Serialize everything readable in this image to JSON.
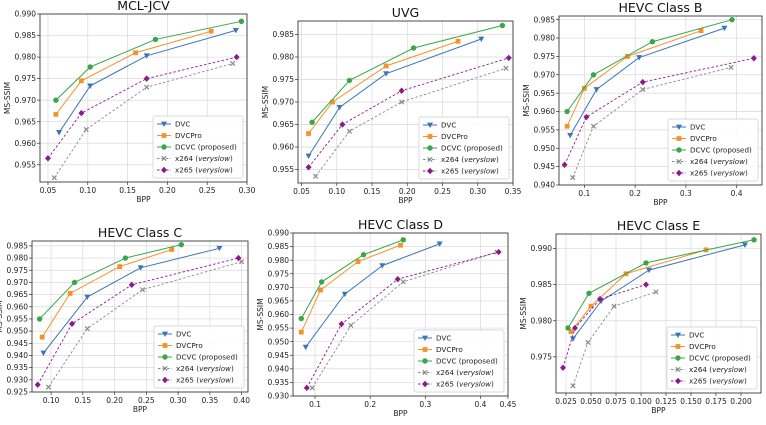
{
  "figure": {
    "ylabel": "MS-SSIM",
    "xlabel": "BPP"
  },
  "legend_labels": {
    "dvc": "DVC",
    "dvcpro": "DVCPro",
    "dcvc_name": "DCVC",
    "dcvc_note": "(proposed)",
    "x264_name": "x264",
    "x265_name": "x265",
    "preset": "veryslow"
  },
  "series_styles": [
    {
      "key": "dvc",
      "name": "DVC",
      "color": "#3a76b7",
      "marker": "tri-down",
      "dashed": false
    },
    {
      "key": "dvcpro",
      "name": "DVCPro",
      "color": "#f5922b",
      "marker": "square",
      "dashed": false
    },
    {
      "key": "dcvc",
      "name": "DCVC (proposed)",
      "color": "#3aa648",
      "marker": "circle",
      "dashed": false
    },
    {
      "key": "x264",
      "name": "x264 (veryslow)",
      "color": "#8a8a8a",
      "marker": "x",
      "dashed": true
    },
    {
      "key": "x265",
      "name": "x265 (veryslow)",
      "color": "#8c1a8c",
      "marker": "diamond",
      "dashed": true
    }
  ],
  "chart_data": [
    {
      "type": "line",
      "title": "MCL-JCV",
      "xlabel": "BPP",
      "ylabel": "MS-SSIM",
      "xlim": [
        0.04,
        0.3
      ],
      "ylim": [
        0.951,
        0.99
      ],
      "xticks": [
        "0.05",
        "0.10",
        "0.15",
        "0.20",
        "0.25",
        "0.30"
      ],
      "yticks": [
        "0.955",
        "0.960",
        "0.965",
        "0.970",
        "0.975",
        "0.980",
        "0.985",
        "0.990"
      ],
      "legend": "lower-right",
      "series": [
        {
          "name": "DVC",
          "x": [
            0.064,
            0.103,
            0.174,
            0.286
          ],
          "y": [
            0.9625,
            0.9733,
            0.9803,
            0.9862
          ]
        },
        {
          "name": "DVCPro",
          "x": [
            0.06,
            0.092,
            0.16,
            0.255
          ],
          "y": [
            0.9667,
            0.9745,
            0.981,
            0.986
          ]
        },
        {
          "name": "DCVC (proposed)",
          "x": [
            0.06,
            0.103,
            0.185,
            0.293
          ],
          "y": [
            0.97,
            0.9777,
            0.9841,
            0.9883
          ]
        },
        {
          "name": "x264 (veryslow)",
          "x": [
            0.058,
            0.098,
            0.174,
            0.282
          ],
          "y": [
            0.952,
            0.9632,
            0.973,
            0.9785
          ]
        },
        {
          "name": "x265 (veryslow)",
          "x": [
            0.05,
            0.092,
            0.174,
            0.287
          ],
          "y": [
            0.9565,
            0.967,
            0.975,
            0.98
          ]
        }
      ]
    },
    {
      "type": "line",
      "title": "UVG",
      "xlabel": "BPP",
      "ylabel": "MS-SSIM",
      "xlim": [
        0.045,
        0.35
      ],
      "ylim": [
        0.952,
        0.988
      ],
      "xticks": [
        "0.05",
        "0.10",
        "0.15",
        "0.20",
        "0.25",
        "0.30",
        "0.35"
      ],
      "yticks": [
        "0.955",
        "0.960",
        "0.965",
        "0.970",
        "0.975",
        "0.980",
        "0.985"
      ],
      "legend": "lower-right",
      "series": [
        {
          "name": "DVC",
          "x": [
            0.06,
            0.104,
            0.17,
            0.305
          ],
          "y": [
            0.958,
            0.9688,
            0.9763,
            0.984
          ]
        },
        {
          "name": "DVCPro",
          "x": [
            0.06,
            0.094,
            0.17,
            0.272
          ],
          "y": [
            0.963,
            0.97,
            0.978,
            0.9835
          ]
        },
        {
          "name": "DCVC (proposed)",
          "x": [
            0.065,
            0.118,
            0.209,
            0.335
          ],
          "y": [
            0.9655,
            0.9748,
            0.982,
            0.987
          ]
        },
        {
          "name": "x264 (veryslow)",
          "x": [
            0.07,
            0.118,
            0.192,
            0.34
          ],
          "y": [
            0.9535,
            0.9635,
            0.97,
            0.9775
          ]
        },
        {
          "name": "x265 (veryslow)",
          "x": [
            0.06,
            0.108,
            0.192,
            0.344
          ],
          "y": [
            0.9555,
            0.965,
            0.9725,
            0.9798
          ]
        }
      ]
    },
    {
      "type": "line",
      "title": "HEVC Class B",
      "xlabel": "BPP",
      "ylabel": "MS-SSIM",
      "xlim": [
        0.05,
        0.45
      ],
      "ylim": [
        0.94,
        0.986
      ],
      "xticks": [
        "0.1",
        "0.2",
        "0.3",
        "0.4"
      ],
      "yticks": [
        "0.940",
        "0.945",
        "0.950",
        "0.955",
        "0.960",
        "0.965",
        "0.970",
        "0.975",
        "0.980",
        "0.985"
      ],
      "legend": "lower-right",
      "series": [
        {
          "name": "DVC",
          "x": [
            0.072,
            0.124,
            0.208,
            0.376
          ],
          "y": [
            0.9535,
            0.966,
            0.9747,
            0.9827
          ]
        },
        {
          "name": "DVCPro",
          "x": [
            0.066,
            0.1,
            0.185,
            0.33
          ],
          "y": [
            0.956,
            0.9663,
            0.975,
            0.982
          ]
        },
        {
          "name": "DCVC (proposed)",
          "x": [
            0.066,
            0.118,
            0.234,
            0.391
          ],
          "y": [
            0.96,
            0.97,
            0.979,
            0.985
          ]
        },
        {
          "name": "x264 (veryslow)",
          "x": [
            0.077,
            0.118,
            0.215,
            0.389
          ],
          "y": [
            0.942,
            0.956,
            0.966,
            0.972
          ]
        },
        {
          "name": "x265 (veryslow)",
          "x": [
            0.061,
            0.104,
            0.215,
            0.434
          ],
          "y": [
            0.9455,
            0.9585,
            0.968,
            0.9745
          ]
        }
      ]
    },
    {
      "type": "line",
      "title": "HEVC Class C",
      "xlabel": "BPP",
      "ylabel": "MS-SSIM",
      "xlim": [
        0.07,
        0.41
      ],
      "ylim": [
        0.925,
        0.987
      ],
      "xticks": [
        "0.10",
        "0.15",
        "0.20",
        "0.25",
        "0.30",
        "0.35",
        "0.40"
      ],
      "yticks": [
        "0.925",
        "0.930",
        "0.935",
        "0.940",
        "0.945",
        "0.950",
        "0.955",
        "0.960",
        "0.965",
        "0.970",
        "0.975",
        "0.980",
        "0.985"
      ],
      "legend": "lower-right",
      "series": [
        {
          "name": "DVC",
          "x": [
            0.088,
            0.157,
            0.241,
            0.365
          ],
          "y": [
            0.941,
            0.964,
            0.976,
            0.984
          ]
        },
        {
          "name": "DVCPro",
          "x": [
            0.086,
            0.13,
            0.208,
            0.29
          ],
          "y": [
            0.9475,
            0.9655,
            0.9765,
            0.9835
          ]
        },
        {
          "name": "DCVC (proposed)",
          "x": [
            0.082,
            0.137,
            0.217,
            0.305
          ],
          "y": [
            0.955,
            0.97,
            0.98,
            0.9855
          ]
        },
        {
          "name": "x264 (veryslow)",
          "x": [
            0.096,
            0.157,
            0.244,
            0.4
          ],
          "y": [
            0.927,
            0.951,
            0.967,
            0.9785
          ]
        },
        {
          "name": "x265 (veryslow)",
          "x": [
            0.079,
            0.133,
            0.227,
            0.395
          ],
          "y": [
            0.928,
            0.953,
            0.969,
            0.98
          ]
        }
      ]
    },
    {
      "type": "line",
      "title": "HEVC Class D",
      "xlabel": "BPP",
      "ylabel": "MS-SSIM",
      "xlim": [
        0.06,
        0.45
      ],
      "ylim": [
        0.93,
        0.99
      ],
      "xticks": [
        "0.1",
        "0.2",
        "0.3",
        "0.4",
        "0.45"
      ],
      "yticks": [
        "0.930",
        "0.935",
        "0.940",
        "0.945",
        "0.950",
        "0.955",
        "0.960",
        "0.965",
        "0.970",
        "0.975",
        "0.980",
        "0.985",
        "0.990"
      ],
      "legend": "lower-right",
      "series": [
        {
          "name": "DVC",
          "x": [
            0.083,
            0.154,
            0.222,
            0.326
          ],
          "y": [
            0.948,
            0.9675,
            0.978,
            0.986
          ]
        },
        {
          "name": "DVCPro",
          "x": [
            0.075,
            0.11,
            0.178,
            0.255
          ],
          "y": [
            0.9535,
            0.969,
            0.9795,
            0.9855
          ]
        },
        {
          "name": "DCVC (proposed)",
          "x": [
            0.075,
            0.112,
            0.188,
            0.26
          ],
          "y": [
            0.9585,
            0.972,
            0.982,
            0.9875
          ]
        },
        {
          "name": "x264 (veryslow)",
          "x": [
            0.095,
            0.165,
            0.26,
            0.43
          ],
          "y": [
            0.933,
            0.956,
            0.972,
            0.983
          ]
        },
        {
          "name": "x265 (veryslow)",
          "x": [
            0.085,
            0.148,
            0.25,
            0.433
          ],
          "y": [
            0.933,
            0.9565,
            0.973,
            0.983
          ]
        }
      ]
    },
    {
      "type": "line",
      "title": "HEVC Class E",
      "xlabel": "BPP",
      "ylabel": "MS-SSIM",
      "xlim": [
        0.015,
        0.22
      ],
      "ylim": [
        0.97,
        0.992
      ],
      "xticks": [
        "0.025",
        "0.050",
        "0.075",
        "0.100",
        "0.125",
        "0.150",
        "0.175",
        "0.200"
      ],
      "yticks": [
        "0.975",
        "0.980",
        "0.985",
        "0.990"
      ],
      "legend": "lower-right",
      "series": [
        {
          "name": "DVC",
          "x": [
            0.032,
            0.06,
            0.108,
            0.204
          ],
          "y": [
            0.9775,
            0.9827,
            0.987,
            0.9905
          ]
        },
        {
          "name": "DVCPro",
          "x": [
            0.03,
            0.05,
            0.085,
            0.165
          ],
          "y": [
            0.9785,
            0.982,
            0.9865,
            0.9898
          ]
        },
        {
          "name": "DCVC (proposed)",
          "x": [
            0.027,
            0.048,
            0.105,
            0.213
          ],
          "y": [
            0.979,
            0.9838,
            0.988,
            0.9912
          ]
        },
        {
          "name": "x264 (veryslow)",
          "x": [
            0.032,
            0.047,
            0.073,
            0.115
          ],
          "y": [
            0.971,
            0.977,
            0.982,
            0.984
          ]
        },
        {
          "name": "x265 (veryslow)",
          "x": [
            0.022,
            0.034,
            0.059,
            0.105
          ],
          "y": [
            0.9735,
            0.979,
            0.983,
            0.985
          ]
        }
      ]
    }
  ]
}
